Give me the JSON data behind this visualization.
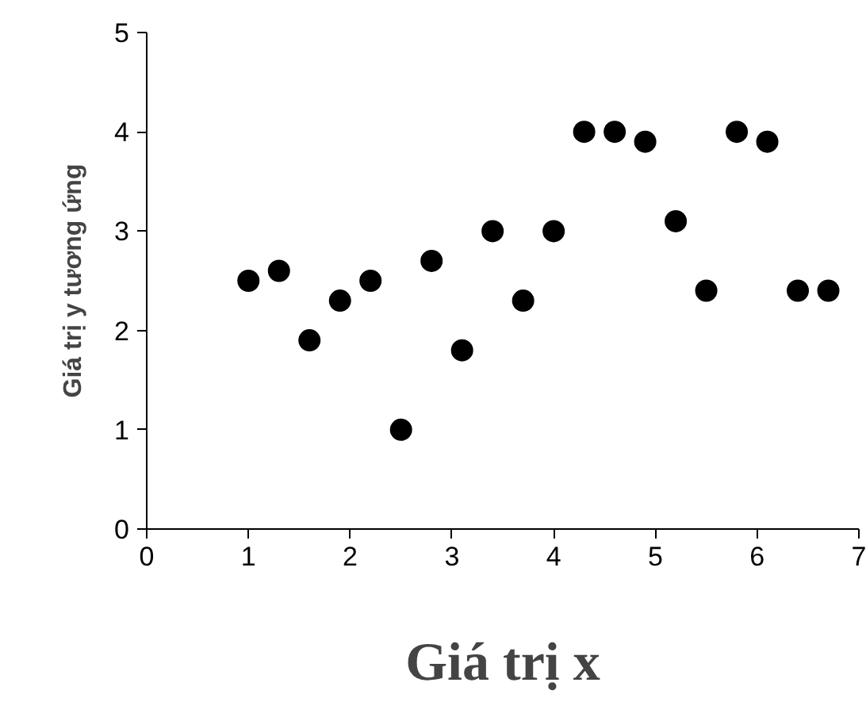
{
  "chart_data": {
    "type": "scatter",
    "xlabel": "Giá trị x",
    "ylabel": "Giá trị y tương ứng",
    "x": [
      1.0,
      1.3,
      1.6,
      1.9,
      2.2,
      2.5,
      2.8,
      3.1,
      3.4,
      3.7,
      4.0,
      4.3,
      4.6,
      4.9,
      5.2,
      5.5,
      5.8,
      6.1,
      6.4,
      6.7
    ],
    "series": [
      {
        "color": "#000000",
        "values": [
          2.5,
          2.6,
          1.9,
          2.3,
          2.5,
          1.0,
          2.7,
          1.8,
          3.0,
          2.3,
          3.0,
          4.0,
          4.0,
          3.9,
          3.1,
          2.4,
          4.0,
          3.9,
          2.4,
          2.4
        ]
      }
    ],
    "xlim": [
      0,
      7
    ],
    "xticks": [
      0,
      1,
      2,
      3,
      4,
      5,
      6,
      7
    ],
    "ylim": [
      0,
      5
    ],
    "yticks": [
      0,
      1,
      2,
      3,
      4,
      5
    ],
    "grid": false,
    "marker": "circle"
  }
}
